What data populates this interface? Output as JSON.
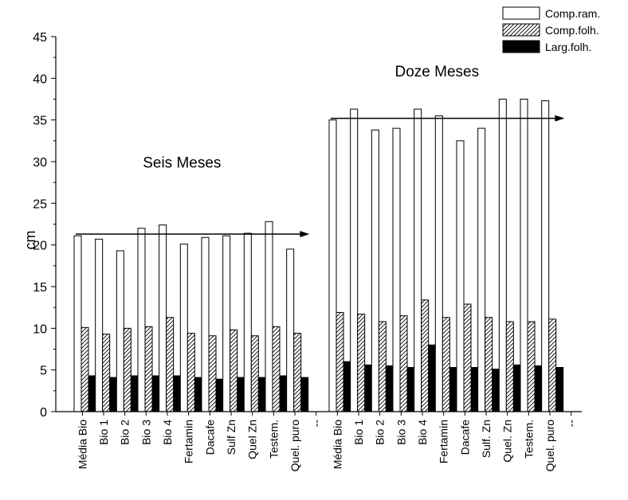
{
  "chart_data": {
    "type": "bar",
    "ylabel": "cm",
    "ylim": [
      0,
      45
    ],
    "yticks": [
      0,
      5,
      10,
      15,
      20,
      25,
      30,
      35,
      40,
      45
    ],
    "grid": false,
    "legend_position": "top-right",
    "categories": [
      "Média Bio",
      "Bio 1",
      "Bio 2",
      "Bio 3",
      "Bio 4",
      "Fertamin",
      "Dacafe",
      "Sulf Zn",
      "Quel Zn",
      "Testem.",
      "Quel. puro",
      "--",
      "Média Bio",
      "Bio 1",
      "Bio 2",
      "Bio 3",
      "Bio 4",
      "Fertamin",
      "Dacafe",
      "Sulf. Zn",
      "Quel. Zn",
      "Testem.",
      "Quel. puro",
      "--"
    ],
    "series": [
      {
        "name": "Comp.ram.",
        "pattern": "white",
        "values": [
          21.1,
          20.7,
          19.3,
          22.0,
          22.4,
          20.1,
          20.9,
          21.1,
          21.4,
          22.8,
          19.5,
          null,
          35.0,
          36.3,
          33.8,
          34.0,
          36.3,
          35.5,
          32.5,
          34.0,
          37.5,
          37.5,
          37.3,
          null
        ]
      },
      {
        "name": "Comp.folh.",
        "pattern": "hatched",
        "values": [
          10.1,
          9.3,
          10.0,
          10.2,
          11.3,
          9.4,
          9.1,
          9.8,
          9.1,
          10.2,
          9.4,
          null,
          11.9,
          11.7,
          10.8,
          11.5,
          13.4,
          11.3,
          12.9,
          11.3,
          10.8,
          10.8,
          11.1,
          null
        ]
      },
      {
        "name": "Larg.folh.",
        "pattern": "black",
        "values": [
          4.3,
          4.1,
          4.3,
          4.3,
          4.3,
          4.1,
          3.9,
          4.1,
          4.1,
          4.3,
          4.1,
          null,
          6.0,
          5.6,
          5.5,
          5.3,
          8.0,
          5.3,
          5.3,
          5.1,
          5.6,
          5.5,
          5.3,
          null
        ]
      }
    ],
    "annotations": [
      {
        "text": "Seis Meses",
        "arrow_y": 21.3,
        "arrow_from": 0,
        "arrow_to": 11
      },
      {
        "text": "Doze Meses",
        "arrow_y": 35.2,
        "arrow_from": 12,
        "arrow_to": 23
      }
    ],
    "colors": {
      "axis": "#000000",
      "white_fill": "#ffffff",
      "black_fill": "#000000"
    }
  }
}
